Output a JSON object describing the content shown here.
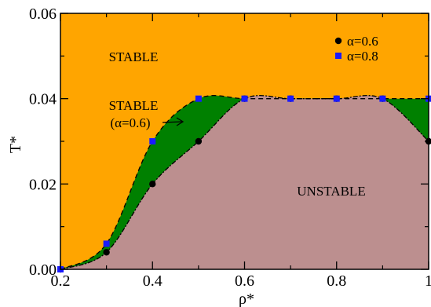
{
  "chart_data": {
    "type": "scatter",
    "title": "",
    "xlabel": "ρ*",
    "ylabel": "T*",
    "xlim": [
      0.2,
      1.0
    ],
    "ylim": [
      0.0,
      0.06
    ],
    "xticks": [
      0.2,
      0.4,
      0.6,
      0.8,
      1.0
    ],
    "xtick_labels": [
      "0.2",
      "0.4",
      "0.6",
      "0.8",
      "1"
    ],
    "yticks": [
      0.0,
      0.02,
      0.04,
      0.06
    ],
    "ytick_labels": [
      "0.00",
      "0.02",
      "0.04",
      "0.06"
    ],
    "grid": false,
    "legend_position": "top-right",
    "series": [
      {
        "name": "α=0.6",
        "marker": "circle",
        "color": "#000000",
        "x": [
          0.2,
          0.3,
          0.4,
          0.5,
          0.6,
          0.7,
          0.8,
          0.9,
          1.0
        ],
        "y": [
          0.0,
          0.004,
          0.02,
          0.03,
          0.04,
          0.04,
          0.04,
          0.04,
          0.03
        ]
      },
      {
        "name": "α=0.8",
        "marker": "square",
        "color": "#1a1aff",
        "x": [
          0.2,
          0.3,
          0.4,
          0.5,
          0.6,
          0.7,
          0.8,
          0.9,
          1.0
        ],
        "y": [
          0.0,
          0.006,
          0.03,
          0.04,
          0.04,
          0.04,
          0.04,
          0.04,
          0.04
        ]
      }
    ],
    "regions": [
      {
        "label": "STABLE",
        "color": "#ffa500"
      },
      {
        "label": "STABLE",
        "sublabel": "(α=0.6)",
        "color": "#008000"
      },
      {
        "label": "UNSTABLE",
        "color": "#bc8f8f"
      }
    ],
    "colors": {
      "stable": "#ffa500",
      "stable_alpha06": "#008000",
      "unstable": "#bc8f8f"
    }
  }
}
